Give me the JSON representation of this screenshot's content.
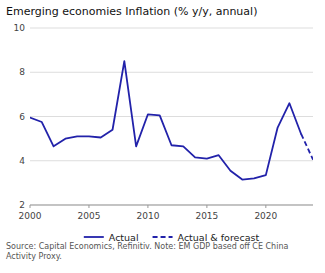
{
  "chart_data": {
    "type": "line",
    "title": "Emerging economies Inflation (% y/y, annual)",
    "annotations": [
      "Source: Capital Economics, Refinitiv. Note: EM GDP based off CE China Activity Proxy."
    ],
    "x": [
      2000,
      2001,
      2002,
      2003,
      2004,
      2005,
      2006,
      2007,
      2008,
      2009,
      2010,
      2011,
      2012,
      2013,
      2014,
      2015,
      2016,
      2017,
      2018,
      2019,
      2020,
      2021,
      2022,
      2023,
      2024
    ],
    "series": [
      {
        "name": "Actual",
        "color": "#2222aa",
        "line_style": "solid",
        "values": [
          5.95,
          5.75,
          4.65,
          5.0,
          5.1,
          5.1,
          5.05,
          5.4,
          8.5,
          4.65,
          6.1,
          6.05,
          4.7,
          4.65,
          4.15,
          4.1,
          4.25,
          3.55,
          3.15,
          3.2,
          3.35,
          5.5,
          6.6,
          5.2,
          null
        ]
      },
      {
        "name": "Actual & forecast",
        "color": "#2222aa",
        "line_style": "dashed",
        "values": [
          null,
          null,
          null,
          null,
          null,
          null,
          null,
          null,
          null,
          null,
          null,
          null,
          null,
          null,
          null,
          null,
          null,
          null,
          null,
          null,
          null,
          null,
          null,
          5.2,
          4.05
        ]
      }
    ],
    "xlim": [
      2000,
      2024
    ],
    "xticks": [
      2000,
      2005,
      2010,
      2015,
      2020
    ],
    "ylim": [
      2,
      10
    ],
    "yticks": [
      2,
      4,
      6,
      8,
      10
    ],
    "grid": true,
    "legend": "bottom"
  }
}
